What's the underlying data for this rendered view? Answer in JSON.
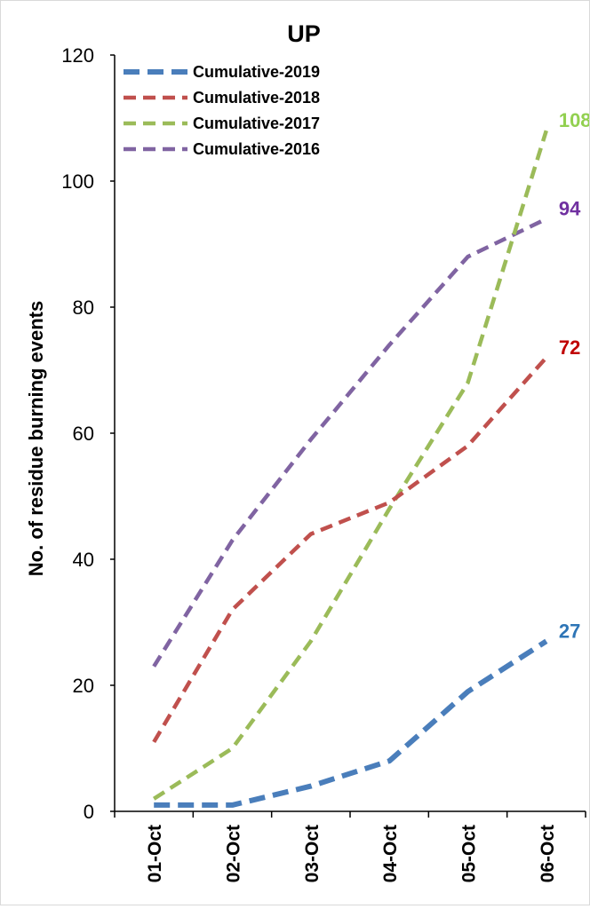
{
  "chart_data": {
    "type": "line",
    "title": "UP",
    "ylabel": "No. of residue burning events",
    "xlabel": "",
    "categories": [
      "01-Oct",
      "02-Oct",
      "03-Oct",
      "04-Oct",
      "05-Oct",
      "06-Oct"
    ],
    "ylim": [
      0,
      120
    ],
    "yticks": [
      0,
      20,
      40,
      60,
      80,
      100,
      120
    ],
    "grid": false,
    "legend": "top-left",
    "line_style": "dashed",
    "series": [
      {
        "name": "Cumulative-2019",
        "values": [
          1,
          1,
          4,
          8,
          19,
          27
        ],
        "color": "#4a7ebb",
        "end_label": "27",
        "end_label_color": "#2e75b6",
        "thick": true
      },
      {
        "name": "Cumulative-2018",
        "values": [
          11,
          32,
          44,
          49,
          58,
          72
        ],
        "color": "#c0504d",
        "end_label": "72",
        "end_label_color": "#c00000",
        "thick": false
      },
      {
        "name": "Cumulative-2017",
        "values": [
          2,
          10,
          27,
          48,
          68,
          108
        ],
        "color": "#9bbb59",
        "end_label": "108",
        "end_label_color": "#92d050",
        "thick": false
      },
      {
        "name": "Cumulative-2016",
        "values": [
          23,
          43,
          59,
          74,
          88,
          94
        ],
        "color": "#8064a2",
        "end_label": "94",
        "end_label_color": "#7030a0",
        "thick": false
      }
    ]
  }
}
